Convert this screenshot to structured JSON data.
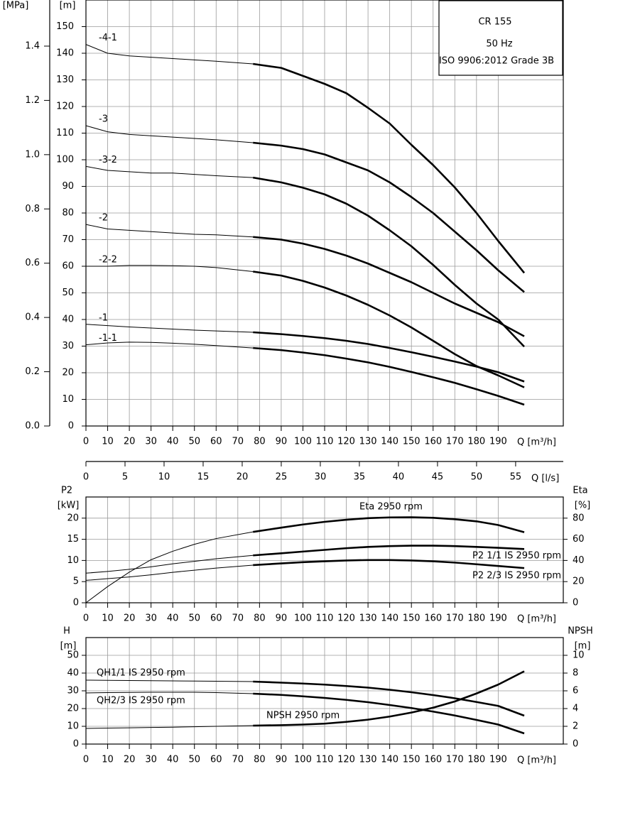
{
  "chart_data": [
    {
      "type": "line",
      "xlabel": "Q [m³/h]",
      "ylabel": "[m]",
      "y2label": "[MPa]",
      "y2_side": "left",
      "box": {
        "title": "CR 155",
        "subtitle": "50 Hz",
        "note": "ISO 9906:2012 Grade 3B"
      },
      "grid": true,
      "thick_from": 77,
      "x": [
        0,
        10,
        20,
        30,
        40,
        50,
        60,
        77,
        90,
        100,
        110,
        120,
        130,
        140,
        150,
        160,
        170,
        180,
        190,
        202
      ],
      "xlim": [
        0,
        220
      ],
      "xticks": [
        0,
        10,
        20,
        30,
        40,
        50,
        60,
        70,
        80,
        90,
        100,
        110,
        120,
        130,
        140,
        150,
        160,
        170,
        180,
        190
      ],
      "ylim": [
        0,
        160
      ],
      "yticks": [
        0,
        10,
        20,
        30,
        40,
        50,
        60,
        70,
        80,
        90,
        100,
        110,
        120,
        130,
        140,
        150
      ],
      "y2lim": [
        0,
        1.57
      ],
      "y2ticks": [
        {
          "value": 0,
          "label": "0.0"
        },
        0.2,
        0.4,
        0.6,
        0.8,
        {
          "value": 1,
          "label": "1.0"
        },
        1.2,
        1.4
      ],
      "series": [
        {
          "name": "-4-1",
          "color": "#000000",
          "values": [
            143.3,
            140,
            139,
            138.5,
            138,
            137.5,
            137,
            136,
            134.5,
            131.5,
            128.5,
            125,
            119.5,
            113.6,
            105.6,
            98,
            89.6,
            80,
            69.5,
            57.5
          ]
        },
        {
          "name": "-3",
          "color": "#000000",
          "values": [
            112.8,
            110.5,
            109.5,
            109,
            108.5,
            108,
            107.5,
            106.4,
            105.3,
            104,
            102,
            99,
            96,
            91.5,
            86,
            80,
            73,
            66,
            58.5,
            50.3
          ]
        },
        {
          "name": "-3-2",
          "color": "#000000",
          "values": [
            97.5,
            96,
            95.5,
            95,
            95,
            94.5,
            94,
            93.3,
            91.5,
            89.5,
            87,
            83.5,
            79,
            73.5,
            67.5,
            60.5,
            53,
            46,
            40,
            29.8
          ]
        },
        {
          "name": "-2",
          "color": "#000000",
          "values": [
            75.7,
            74,
            73.5,
            73,
            72.5,
            72,
            71.8,
            71,
            70,
            68.5,
            66.5,
            64,
            61,
            57.5,
            54,
            50,
            46,
            42.5,
            39,
            33.7
          ]
        },
        {
          "name": "-2-2",
          "color": "#000000",
          "values": [
            60,
            60,
            60.3,
            60.3,
            60.2,
            60,
            59.5,
            58,
            56.5,
            54.5,
            52,
            49,
            45.5,
            41.5,
            37,
            32,
            27,
            22.5,
            19,
            14.5
          ]
        },
        {
          "name": "-1",
          "color": "#000000",
          "values": [
            38.2,
            37.7,
            37.2,
            36.8,
            36.4,
            36,
            35.7,
            35.2,
            34.5,
            33.8,
            33,
            32,
            30.8,
            29.3,
            27.7,
            26,
            24.2,
            22.3,
            20.2,
            16.7
          ]
        },
        {
          "name": "-1-1",
          "color": "#000000",
          "values": [
            30.5,
            31.2,
            31.5,
            31.4,
            31.1,
            30.7,
            30.2,
            29.3,
            28.5,
            27.6,
            26.6,
            25.3,
            23.9,
            22.2,
            20.3,
            18.3,
            16.2,
            13.8,
            11.3,
            8
          ]
        }
      ],
      "secondary_x": {
        "xlabel": "Q [l/s]",
        "xlim": [
          0,
          61.1
        ],
        "xticks": [
          0,
          5,
          10,
          15,
          20,
          25,
          30,
          35,
          40,
          45,
          50,
          55
        ]
      }
    },
    {
      "type": "line",
      "xlabel": "Q [m³/h]",
      "ylabel": "P2",
      "yunit": "[kW]",
      "y2label": "Eta",
      "y2unit": "[%]",
      "y2_side": "right",
      "grid": true,
      "thick_from": 77,
      "x": [
        0,
        10,
        20,
        30,
        40,
        50,
        60,
        77,
        90,
        100,
        110,
        120,
        130,
        140,
        150,
        160,
        170,
        180,
        190,
        202
      ],
      "xlim": [
        0,
        220
      ],
      "xticks": [
        0,
        10,
        20,
        30,
        40,
        50,
        60,
        70,
        80,
        90,
        100,
        110,
        120,
        130,
        140,
        150,
        160,
        170,
        180,
        190
      ],
      "ylim": [
        0,
        25
      ],
      "yticks": [
        0,
        5,
        10,
        15,
        20
      ],
      "y2lim": [
        0,
        100
      ],
      "y2ticks": [
        0,
        20,
        40,
        60,
        80
      ],
      "series": [
        {
          "name": "Eta 2950 rpm",
          "color": "#000000",
          "axis": "y2",
          "values": [
            0,
            15.3,
            29,
            40.7,
            48.7,
            55.3,
            60.7,
            67,
            71,
            74,
            76.5,
            78.5,
            80,
            80.7,
            80.8,
            80.3,
            79,
            77,
            73.5,
            66.7
          ]
        },
        {
          "name": "P2 1/1 IS 2950 rpm",
          "color": "#000000",
          "values": [
            7,
            7.4,
            7.9,
            8.5,
            9.2,
            9.8,
            10.4,
            11.2,
            11.7,
            12.1,
            12.5,
            12.9,
            13.2,
            13.4,
            13.5,
            13.5,
            13.4,
            13.2,
            13,
            12.7
          ]
        },
        {
          "name": "P2 2/3 IS 2950 rpm",
          "color": "#000000",
          "values": [
            5.3,
            5.7,
            6.1,
            6.6,
            7.2,
            7.7,
            8.2,
            8.9,
            9.3,
            9.6,
            9.8,
            10,
            10.1,
            10.1,
            10,
            9.8,
            9.5,
            9.1,
            8.7,
            8.2
          ]
        }
      ]
    },
    {
      "type": "line",
      "xlabel": "Q [m³/h]",
      "ylabel": "H",
      "yunit": "[m]",
      "y2label": "NPSH",
      "y2unit": "[m]",
      "y2_side": "right",
      "grid": true,
      "thick_from": 77,
      "x": [
        0,
        10,
        20,
        30,
        40,
        50,
        60,
        77,
        90,
        100,
        110,
        120,
        130,
        140,
        150,
        160,
        170,
        180,
        190,
        202
      ],
      "xlim": [
        0,
        220
      ],
      "xticks": [
        0,
        10,
        20,
        30,
        40,
        50,
        60,
        70,
        80,
        90,
        100,
        110,
        120,
        130,
        140,
        150,
        160,
        170,
        180,
        190
      ],
      "ylim": [
        0,
        60
      ],
      "yticks": [
        0,
        10,
        20,
        30,
        40,
        50
      ],
      "y2lim": [
        0,
        12
      ],
      "y2ticks": [
        0,
        2,
        4,
        6,
        8,
        10
      ],
      "series": [
        {
          "name": "QH1/1 IS 2950 rpm",
          "color": "#000000",
          "values": [
            36,
            35.9,
            35.8,
            35.7,
            35.6,
            35.5,
            35.4,
            35.2,
            34.6,
            34.1,
            33.5,
            32.7,
            31.8,
            30.6,
            29.2,
            27.6,
            25.8,
            23.7,
            21.5,
            16
          ]
        },
        {
          "name": "QH2/3 IS 2950 rpm",
          "color": "#000000",
          "values": [
            28.8,
            29,
            29.1,
            29.2,
            29.2,
            29.2,
            29,
            28.4,
            27.7,
            26.9,
            26,
            24.9,
            23.6,
            22,
            20.3,
            18.3,
            16.1,
            13.6,
            11,
            6
          ]
        },
        {
          "name": "NPSH 2950 rpm",
          "color": "#000000",
          "axis": "y2",
          "values": [
            1.76,
            1.8,
            1.83,
            1.87,
            1.9,
            1.95,
            2,
            2.08,
            2.13,
            2.2,
            2.3,
            2.5,
            2.75,
            3.1,
            3.55,
            4.1,
            4.8,
            5.7,
            6.7,
            8.2
          ]
        }
      ]
    }
  ]
}
